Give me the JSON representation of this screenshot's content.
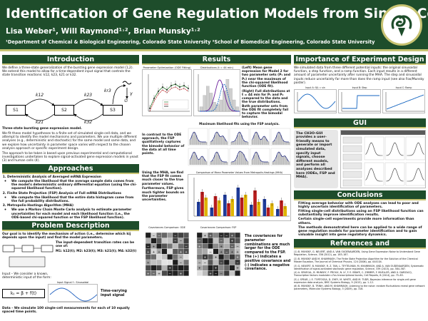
{
  "header": {
    "title": "Identification of Gene Regulation Models from Single-Cell Data",
    "authors": "Lisa Weber¹, Will Raymond¹˒², Brian Munsky¹˒²",
    "affiliations": "¹Department of Chemical & Biological Engineering, Colorado State University   ²School of Biomedical Engineering, Colorado State University"
  },
  "intro": {
    "heading": "Introduction",
    "p1": "We define a three-state generalization of the bursting gene expression model (1,2). We extend this model to allow for a time-dependent input signal that controls the state transition reactions: k12, k23, k21 or k32.",
    "diagram_caption": "Three-state bursting gene expression model.",
    "p2": "We fit these model hypotheses to a finite set of simulated single-cell data, and we attempt to identify the model mechanisms and parameters. We use multiple different analyses (e.g., deterministic and stochastic) for the same model and same data, and we explore how uncertainty in parameter space varies with respect to the chosen analysis approach or specific experiment design.",
    "p3": "The approach to be taken is based upon previous experimental and computational investigations undertaken to explore signal-activated gene expression models in yeast (3) and human cells (4)."
  },
  "diagram": {
    "states": [
      "S1",
      "S2",
      "S3"
    ],
    "rates": [
      "k12",
      "k21",
      "k23",
      "k32",
      "kr3",
      "γ"
    ],
    "output": "∅"
  },
  "approaches": {
    "heading": "Approaches",
    "items": [
      {
        "title": "Deterministic Analysis of Averaged mRNA Expression",
        "desc": "We compute the likelihood that the average sample data comes from the model's deterministic ordinary differential equation (using the chi-squared likelihood function)."
      },
      {
        "title": "Finite State Projection (FSP) Analysis of Full mRNA Distributions",
        "desc": "We compute the likelihood that the entire data histogram come from the full probability distributions."
      },
      {
        "title": "Metropolis-Hastings Algorithm (MHA)",
        "desc": "We use a Markov Chain Monte Carlo analysis to estimate parameter uncertainties for each model and each likelihood function (i.e., the ODE-based chi-squared function or the FSP likelihood function)."
      }
    ]
  },
  "problem": {
    "heading": "Problem Description",
    "p1": "Our goal is to identify the mechanism of action (i.e., determine which kij depends upon the input) and find the model parameters.",
    "rates_intro": "The input-dependent transition rates can be one of:",
    "rates_list": "M1: k12(t);   M2: k23(t);   M3: k21(t);   M4: k32(t)",
    "input_note": "Input – We consider a known, deterministic input of the form:",
    "formula": "kᵢⱼ = β + f(t)",
    "input_plot_title": "Input Signal f : Sinusoidal",
    "input_plot_label": "Time-varying input signal",
    "data_note": "Data – We simulate 100 single-cell measurements for each of 10 equally spaced time points."
  },
  "results": {
    "heading": "Results",
    "fig1_title": "Parameter Optimization (ODE Fitting)",
    "fig2_title": "Distributions (t = 44 min)",
    "text1": "(Left) Mean gene expression for Model 2 for two parameter sets (P₁ and P₂) near the maximum of the chi-squared likelihood function (ODE fit).",
    "text2": "(Right) Full distributions at t = 44 min for P₁ and P₂ compared to the data and the true distributions. Both parameter sets from the ODE fit completely fail to capture the bimodal behavior.",
    "fsp_title": "Maximum likelihood fits using the FSP analysis.",
    "text3": "In contrast to the ODE approach, the FSP qualitatively captures the bimodal behavior of the data at all time points.",
    "mha_title": "Comparison of Mean Parameter Values From Metropolis-Hastings (MHA)",
    "text4": "Using the MHA, we find that the FSP fit comes much closer to the true parameter values.",
    "text5": "Furthermore, FSP gives much tighter bounds on the parameter uncertainties.",
    "cov1_title": "Covariances Comparison: ODE",
    "cov2_title": "Covariances Comparison: FSP",
    "text6": "The covariances for parameter combinations are much larger for the ODE compared to the FSP. The (+) indicates a positive covariance and (-) indicates a negative covariance.",
    "legend": [
      "Mean",
      "Mean Mean P₁",
      "Mean Mean P₂",
      "True Mean",
      "Data",
      "P₁",
      "P₂",
      "True"
    ],
    "xlabel_time": "Time (min)"
  },
  "design": {
    "heading": "Importance of Experiment Design",
    "p1": "We simulated data from three different potential inputs: the original sinusoidal function, a step function, and a ramp function. Each input results in a different amount of parameter uncertainty after running the MHA. The step and sinusoidal inputs reduce uncertainty far more than does the ramp input (see also Fox/Munsky poster).",
    "plots": [
      "Input A: f(t) = sin",
      "Input B: Step",
      "Input C: Ramp"
    ]
  },
  "gui": {
    "heading": "GUI",
    "text": "The CH3O-GUI provides a user-friendly means to generate or import simulated data, specify input signals, choose different models, and perform all analyses described here (ODEs, FSP and MHA)."
  },
  "conclusions": {
    "heading": "Conclusions",
    "items": [
      "Fitting average behavior with ODE analyses can lead to poor and highly uncertain identification of parameters.",
      "Fitting single-cell distributions using an FSP likelihood function can substantially improve identification results.",
      "Certain single-cell experiments provide more information than others.",
      "The methods demonstrated here can be applied to a wide range of gene regulation models for parameter identification and to gain valuable insight into gene regulatory dynamics."
    ]
  },
  "references": {
    "heading": "References and Acknowledgements",
    "items": [
      "(1) B. MUNSKY, G. NEUERT, AND A. VAN OUDENAARDEN, Using Gene Expression Noise to Understand Gene Regulation, Science, 336 (2012), pp. 183–187.",
      "(2) B. MUNSKY AND M. KHAMMASH, The Finite State Projection Algorithm for the Solution of the Chemical Master Equation, The Journal of Chemical Physics, 124 (2006), pp. 044104.",
      "(3) G. NEUERT, B. MUNSKY, R. Z. TAN, L. TEYTELMAN, M. KHAMMASH, AND A. VAN OUDENAARDEN, Systematic identification of signal-activated stochastic gene regulation, Science, 339 (2013), pp. 584–587.",
      "(4) A. SENECAL, B. MUNSKY, F. PROUX, N. LY, F. E. BRAYE, C. ZIMMER, F. MUELLER, AND X. DARZACQ, Transcription factors modulate c-Fos transcriptional bursts, Cell Reports, 8 (2014), pp. 75–83.",
      "(5) J. SPEAR, J. E. TORTOSSA, D. ZHEY, M. WHITE, AND M. TUDR, Bayesian inference for single-cell gene expression data analysis, BMC Systems Biology, 9 (2015), pp. 1–12.",
      "(6) B. MUNSKY, B. TRINH, AND M. KHAMMASH, Listening to the noise: random fluctuations reveal gene network parameters, Molecular Systems Biology, 5 (2009), pp. 318."
    ]
  }
}
